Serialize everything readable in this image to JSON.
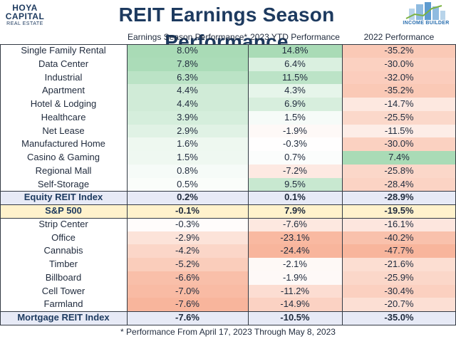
{
  "header": {
    "title": "REIT Earnings Season Performance",
    "logo_left": {
      "line1": "HOYA",
      "line2": "CAPITAL",
      "line3": "REAL ESTATE"
    },
    "logo_right": {
      "caption": "INCOME BUILDER"
    }
  },
  "footer": {
    "note": "* Performance From April 17, 2023 Through May 8, 2023"
  },
  "colors": {
    "green": "#63be7b",
    "red": "#f4845a",
    "neutral": "#ffffff",
    "equity_band": "#e7eaf6",
    "sp_band": "#fff2cc",
    "mortgage_band": "#e7eaf6",
    "title": "#1d3a5f"
  },
  "chart_data": {
    "type": "table",
    "title": "REIT Earnings Season Performance",
    "columns": [
      "",
      "Earnings Season Performance*",
      "2023 YTD Performance",
      "2022 Performance"
    ],
    "rows": [
      {
        "label": "Single Family Rental",
        "values": [
          "8.0%",
          "14.8%",
          "-35.2%"
        ],
        "num": [
          8.0,
          14.8,
          -35.2
        ],
        "style": "normal"
      },
      {
        "label": "Data Center",
        "values": [
          "7.8%",
          "6.4%",
          "-30.0%"
        ],
        "num": [
          7.8,
          6.4,
          -30.0
        ],
        "style": "normal"
      },
      {
        "label": "Industrial",
        "values": [
          "6.3%",
          "11.5%",
          "-32.0%"
        ],
        "num": [
          6.3,
          11.5,
          -32.0
        ],
        "style": "normal"
      },
      {
        "label": "Apartment",
        "values": [
          "4.4%",
          "4.3%",
          "-35.2%"
        ],
        "num": [
          4.4,
          4.3,
          -35.2
        ],
        "style": "normal"
      },
      {
        "label": "Hotel & Lodging",
        "values": [
          "4.4%",
          "6.9%",
          "-14.7%"
        ],
        "num": [
          4.4,
          6.9,
          -14.7
        ],
        "style": "normal"
      },
      {
        "label": "Healthcare",
        "values": [
          "3.9%",
          "1.5%",
          "-25.5%"
        ],
        "num": [
          3.9,
          1.5,
          -25.5
        ],
        "style": "normal"
      },
      {
        "label": "Net Lease",
        "values": [
          "2.9%",
          "-1.9%",
          "-11.5%"
        ],
        "num": [
          2.9,
          -1.9,
          -11.5
        ],
        "style": "normal"
      },
      {
        "label": "Manufactured Home",
        "values": [
          "1.6%",
          "-0.3%",
          "-30.0%"
        ],
        "num": [
          1.6,
          -0.3,
          -30.0
        ],
        "style": "normal"
      },
      {
        "label": "Casino & Gaming",
        "values": [
          "1.5%",
          "0.7%",
          "7.4%"
        ],
        "num": [
          1.5,
          0.7,
          7.4
        ],
        "style": "normal"
      },
      {
        "label": "Regional Mall",
        "values": [
          "0.8%",
          "-7.2%",
          "-25.8%"
        ],
        "num": [
          0.8,
          -7.2,
          -25.8
        ],
        "style": "normal"
      },
      {
        "label": "Self-Storage",
        "values": [
          "0.5%",
          "9.5%",
          "-28.4%"
        ],
        "num": [
          0.5,
          9.5,
          -28.4
        ],
        "style": "normal"
      },
      {
        "label": "Equity REIT Index",
        "values": [
          "0.2%",
          "0.1%",
          "-28.9%"
        ],
        "num": [
          0.2,
          0.1,
          -28.9
        ],
        "style": "equity"
      },
      {
        "label": "S&P 500",
        "values": [
          "-0.1%",
          "7.9%",
          "-19.5%"
        ],
        "num": [
          -0.1,
          7.9,
          -19.5
        ],
        "style": "sp"
      },
      {
        "label": "Strip Center",
        "values": [
          "-0.3%",
          "-7.6%",
          "-16.1%"
        ],
        "num": [
          -0.3,
          -7.6,
          -16.1
        ],
        "style": "normal"
      },
      {
        "label": "Office",
        "values": [
          "-2.9%",
          "-23.1%",
          "-40.2%"
        ],
        "num": [
          -2.9,
          -23.1,
          -40.2
        ],
        "style": "normal"
      },
      {
        "label": "Cannabis",
        "values": [
          "-4.2%",
          "-24.4%",
          "-47.7%"
        ],
        "num": [
          -4.2,
          -24.4,
          -47.7
        ],
        "style": "normal"
      },
      {
        "label": "Timber",
        "values": [
          "-5.2%",
          "-2.1%",
          "-21.6%"
        ],
        "num": [
          -5.2,
          -2.1,
          -21.6
        ],
        "style": "normal"
      },
      {
        "label": "Billboard",
        "values": [
          "-6.6%",
          "-1.9%",
          "-25.9%"
        ],
        "num": [
          -6.6,
          -1.9,
          -25.9
        ],
        "style": "normal"
      },
      {
        "label": "Cell Tower",
        "values": [
          "-7.0%",
          "-11.2%",
          "-30.4%"
        ],
        "num": [
          -7.0,
          -11.2,
          -30.4
        ],
        "style": "normal"
      },
      {
        "label": "Farmland",
        "values": [
          "-7.6%",
          "-14.9%",
          "-20.7%"
        ],
        "num": [
          -7.6,
          -14.9,
          -20.7
        ],
        "style": "normal"
      },
      {
        "label": "Mortgage REIT Index",
        "values": [
          "-7.6%",
          "-10.5%",
          "-35.0%"
        ],
        "num": [
          -7.6,
          -10.5,
          -35.0
        ],
        "style": "mortgage"
      }
    ]
  }
}
